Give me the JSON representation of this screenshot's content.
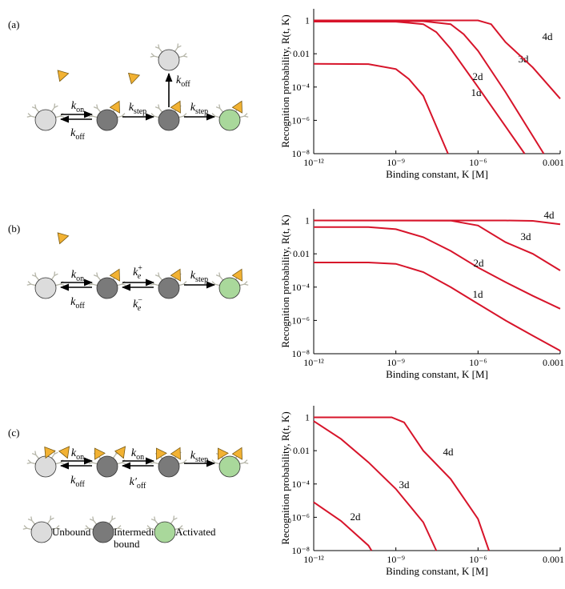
{
  "panels": [
    {
      "label": "(a)",
      "rates": [
        {
          "main": "k",
          "sub": "on"
        },
        {
          "main": "k",
          "sub": "off"
        },
        {
          "main": "k",
          "sub": "step"
        },
        {
          "main": "k",
          "sub": "off"
        },
        {
          "main": "k",
          "sub": "step"
        }
      ]
    },
    {
      "label": "(b)",
      "rates": [
        {
          "main": "k",
          "sub": "on"
        },
        {
          "main": "k",
          "sub": "off"
        },
        {
          "main": "k",
          "sub": "e",
          "sup": "+"
        },
        {
          "main": "k",
          "sub": "e",
          "sup": "−"
        },
        {
          "main": "k",
          "sub": "step"
        }
      ]
    },
    {
      "label": "(c)",
      "rates": [
        {
          "main": "k",
          "sub": "on"
        },
        {
          "main": "k",
          "sub": "off"
        },
        {
          "main": "k",
          "sub": "on"
        },
        {
          "main": "k′",
          "sub": "off"
        },
        {
          "main": "k",
          "sub": "step"
        }
      ]
    }
  ],
  "legend": [
    {
      "lines": [
        "Unbound"
      ],
      "color": "#dcdcdc"
    },
    {
      "lines": [
        "Intermediate",
        "bound"
      ],
      "color": "#7a7a7a"
    },
    {
      "lines": [
        "Activated"
      ],
      "color": "#a9d89b"
    }
  ],
  "chart_data": [
    {
      "type": "line",
      "xlabel": "Binding constant, K [M]",
      "ylabel": "Recognition probability, R(t, K)",
      "xscale": "log",
      "yscale": "log",
      "xlim": [
        1e-12,
        0.001
      ],
      "ylim": [
        1e-08,
        5
      ],
      "xticks": [
        {
          "value": 1e-12,
          "label": "10⁻¹²"
        },
        {
          "value": 1e-09,
          "label": "10⁻⁹"
        },
        {
          "value": 1e-06,
          "label": "10⁻⁶"
        },
        0.001
      ],
      "yticks": [
        1,
        0.01,
        {
          "value": 0.0001,
          "label": "10⁻⁴"
        },
        {
          "value": 1e-06,
          "label": "10⁻⁶"
        },
        {
          "value": 1e-08,
          "label": "10⁻⁸"
        }
      ],
      "series": [
        {
          "name": "1d",
          "color": "#d7142a",
          "x": [
            1e-12,
            1e-10,
            1e-09,
            3e-09,
            1e-08,
            8e-08
          ],
          "values": [
            0.0025,
            0.0024,
            0.0012,
            0.0003,
            3e-05,
            1e-08
          ]
        },
        {
          "name": "2d",
          "color": "#d7142a",
          "x": [
            1e-12,
            1e-09,
            1e-08,
            3e-08,
            1e-07,
            1e-06,
            5e-05
          ],
          "values": [
            0.85,
            0.84,
            0.6,
            0.2,
            0.02,
            0.0001,
            1e-08
          ]
        },
        {
          "name": "3d",
          "color": "#d7142a",
          "x": [
            1e-12,
            1e-08,
            1e-07,
            3e-07,
            1e-06,
            1e-05,
            0.00025
          ],
          "values": [
            0.9,
            0.9,
            0.6,
            0.15,
            0.015,
            5e-05,
            1e-08
          ]
        },
        {
          "name": "4d",
          "color": "#d7142a",
          "x": [
            1e-12,
            1e-06,
            3e-06,
            1e-05,
            0.0001,
            0.001
          ],
          "values": [
            1,
            1,
            0.6,
            0.05,
            0.0015,
            2e-05
          ]
        }
      ]
    },
    {
      "type": "line",
      "xlabel": "Binding constant, K [M]",
      "ylabel": "Recognition probability, R(t, K)",
      "xscale": "log",
      "yscale": "log",
      "xlim": [
        1e-12,
        0.001
      ],
      "ylim": [
        1e-08,
        5
      ],
      "xticks": [
        {
          "value": 1e-12,
          "label": "10⁻¹²"
        },
        {
          "value": 1e-09,
          "label": "10⁻⁹"
        },
        {
          "value": 1e-06,
          "label": "10⁻⁶"
        },
        0.001
      ],
      "yticks": [
        1,
        0.01,
        {
          "value": 0.0001,
          "label": "10⁻⁴"
        },
        {
          "value": 1e-06,
          "label": "10⁻⁶"
        },
        {
          "value": 1e-08,
          "label": "10⁻⁸"
        }
      ],
      "series": [
        {
          "name": "1d",
          "color": "#d7142a",
          "x": [
            1e-12,
            1e-10,
            1e-09,
            1e-08,
            1e-07,
            1e-06,
            1e-05,
            0.0001,
            0.001
          ],
          "values": [
            0.003,
            0.003,
            0.0025,
            0.0008,
            0.0001,
            1e-05,
            1e-06,
            1.2e-07,
            1.5e-08
          ]
        },
        {
          "name": "2d",
          "color": "#d7142a",
          "x": [
            1e-12,
            1e-10,
            1e-09,
            1e-08,
            1e-07,
            1e-06,
            1e-05,
            0.0001,
            0.001
          ],
          "values": [
            0.4,
            0.4,
            0.3,
            0.1,
            0.015,
            0.0015,
            0.0002,
            3e-05,
            5e-06
          ]
        },
        {
          "name": "3d",
          "color": "#d7142a",
          "x": [
            1e-12,
            1e-07,
            1e-06,
            1e-05,
            0.0001,
            0.001
          ],
          "values": [
            1,
            0.98,
            0.5,
            0.05,
            0.01,
            0.001
          ]
        },
        {
          "name": "4d",
          "color": "#d7142a",
          "x": [
            1e-12,
            1e-05,
            0.0001,
            0.001
          ],
          "values": [
            1,
            1,
            0.95,
            0.6
          ]
        }
      ]
    },
    {
      "type": "line",
      "xlabel": "Binding constant, K [M]",
      "ylabel": "Recognition probability, R(t, K)",
      "xscale": "log",
      "yscale": "log",
      "xlim": [
        1e-12,
        0.001
      ],
      "ylim": [
        1e-08,
        5
      ],
      "xticks": [
        {
          "value": 1e-12,
          "label": "10⁻¹²"
        },
        {
          "value": 1e-09,
          "label": "10⁻⁹"
        },
        {
          "value": 1e-06,
          "label": "10⁻⁶"
        },
        0.001
      ],
      "yticks": [
        1,
        0.01,
        {
          "value": 0.0001,
          "label": "10⁻⁴"
        },
        {
          "value": 1e-06,
          "label": "10⁻⁶"
        },
        {
          "value": 1e-08,
          "label": "10⁻⁸"
        }
      ],
      "series": [
        {
          "name": "2d",
          "color": "#d7142a",
          "x": [
            1e-12,
            1e-11,
            1e-10,
            1.3e-10
          ],
          "values": [
            8e-06,
            6e-07,
            2e-08,
            1e-08
          ]
        },
        {
          "name": "3d",
          "color": "#d7142a",
          "x": [
            1e-12,
            1e-11,
            1e-10,
            1e-09,
            1e-08,
            3e-08
          ],
          "values": [
            0.6,
            0.05,
            0.002,
            5e-05,
            5e-07,
            1e-08
          ]
        },
        {
          "name": "4d",
          "color": "#d7142a",
          "x": [
            1e-12,
            7e-10,
            2e-09,
            1e-08,
            1e-07,
            1e-06,
            2.5e-06
          ],
          "values": [
            1,
            1,
            0.5,
            0.01,
            0.0002,
            8e-07,
            1e-08
          ]
        }
      ]
    }
  ]
}
